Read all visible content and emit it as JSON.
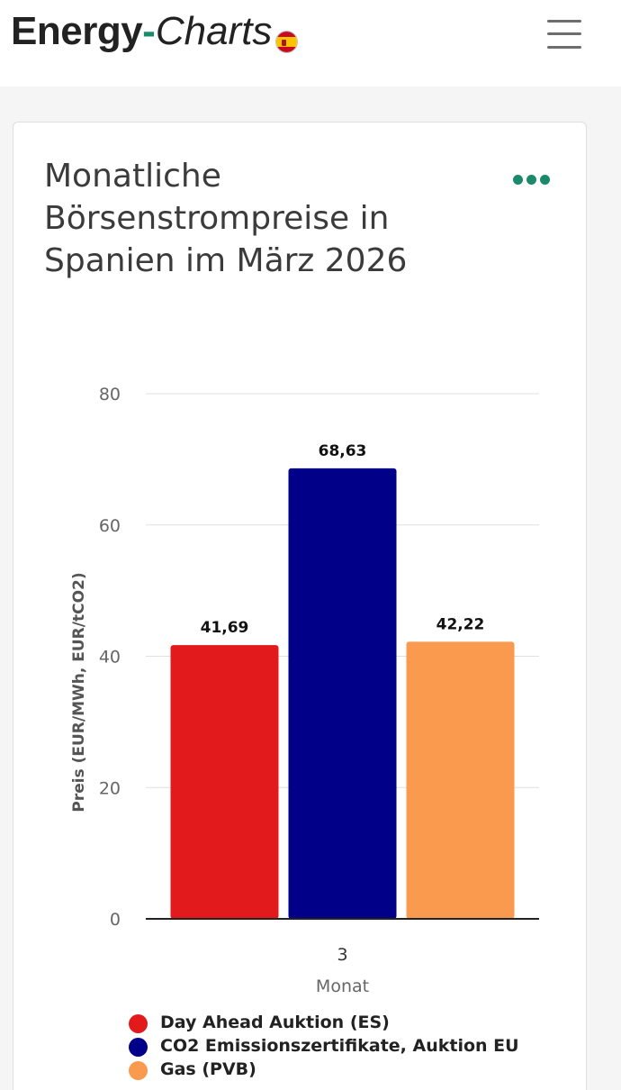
{
  "header": {
    "logo_part1": "Energy",
    "logo_dash": "-",
    "logo_part2": "Charts",
    "flag": "spain-flag-icon",
    "menu_icon": "hamburger-menu-icon"
  },
  "colors": {
    "brand_green": "#1b8a6b",
    "day_ahead": "#e31a1c",
    "co2": "#000088",
    "gas": "#f99a4e"
  },
  "card": {
    "title": "Monatliche Börsenstrompreise in Spanien im März 2026",
    "menu_icon": "more-options-icon"
  },
  "chart_data": {
    "type": "bar",
    "title": "Monatliche Börsenstrompreise in Spanien im März 2026",
    "xlabel": "Monat",
    "ylabel": "Preis (EUR/MWh, EUR/tCO2)",
    "categories": [
      "3"
    ],
    "ylim": [
      0,
      80
    ],
    "yticks": [
      "0",
      "20",
      "40",
      "60",
      "80"
    ],
    "grid": true,
    "legend_position": "bottom-left",
    "series": [
      {
        "name": "Day Ahead Auktion (ES)",
        "values": [
          41.69
        ],
        "label": "41,69",
        "color": "#e31a1c"
      },
      {
        "name": "CO2 Emissionszertifikate, Auktion EU",
        "values": [
          68.63
        ],
        "label": "68,63",
        "color": "#000088"
      },
      {
        "name": "Gas (PVB)",
        "values": [
          42.22
        ],
        "label": "42,22",
        "color": "#f99a4e"
      }
    ]
  }
}
